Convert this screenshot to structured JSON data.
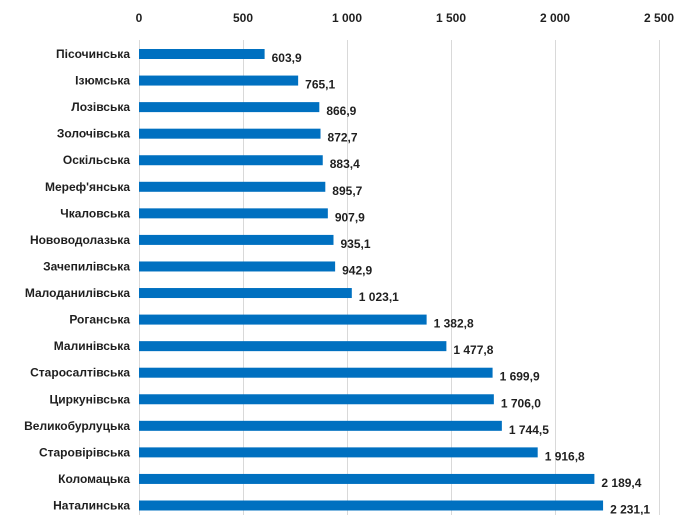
{
  "chart_data": {
    "type": "bar",
    "orientation": "horizontal",
    "categories": [
      "Пісочинська",
      "Ізюмська",
      "Лозівська",
      "Золочівська",
      "Оскільська",
      "Мереф'янська",
      "Чкаловська",
      "Нововодолазька",
      "Зачепилівська",
      "Малоданилівська",
      "Роганська",
      "Малинівська",
      "Старосалтівська",
      "Циркунівська",
      "Великобурлуцька",
      "Старовірівська",
      "Коломацька",
      "Наталинська"
    ],
    "values": [
      603.9,
      765.1,
      866.9,
      872.7,
      883.4,
      895.7,
      907.9,
      935.1,
      942.9,
      1023.1,
      1382.8,
      1477.8,
      1699.9,
      1706.0,
      1744.5,
      1916.8,
      2189.4,
      2231.1
    ],
    "value_labels": [
      "603,9",
      "765,1",
      "866,9",
      "872,7",
      "883,4",
      "895,7",
      "907,9",
      "935,1",
      "942,9",
      "1 023,1",
      "1 382,8",
      "1 477,8",
      "1 699,9",
      "1 706,0",
      "1 744,5",
      "1 916,8",
      "2 189,4",
      "2 231,1"
    ],
    "xlim": [
      0,
      2500
    ],
    "x_ticks": [
      0,
      500,
      1000,
      1500,
      2000,
      2500
    ],
    "x_tick_labels": [
      "0",
      "500",
      "1 000",
      "1 500",
      "2 000",
      "2 500"
    ],
    "x_axis_position": "top",
    "grid": true,
    "legend": false,
    "title": "",
    "xlabel": "",
    "ylabel": "",
    "bar_color": "#0070c0",
    "grid_color": "#d9d9d9",
    "text_color": "#1f1f1f"
  }
}
